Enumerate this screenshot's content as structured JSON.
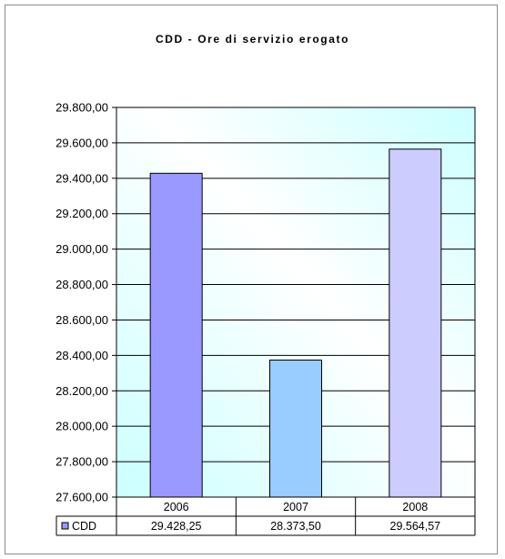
{
  "chart_data": {
    "type": "bar",
    "title": "CDD - Ore di servizio erogato",
    "categories": [
      "2006",
      "2007",
      "2008"
    ],
    "series": [
      {
        "name": "CDD",
        "values": [
          29428.25,
          28373.5,
          29564.57
        ],
        "value_labels": [
          "29.428,25",
          "28.373,50",
          "29.564,57"
        ],
        "bar_colors": [
          "#9999ff",
          "#99ccff",
          "#ccccff"
        ],
        "legend_color": "#9999ff"
      }
    ],
    "y_ticks": [
      "27.600,00",
      "27.800,00",
      "28.000,00",
      "28.200,00",
      "28.400,00",
      "28.600,00",
      "28.800,00",
      "29.000,00",
      "29.200,00",
      "29.400,00",
      "29.600,00",
      "29.800,00"
    ],
    "ylim": [
      27600,
      29800
    ],
    "ystep": 200,
    "grid": true,
    "data_table": true,
    "plot_background": [
      "#ccffff",
      "#ffffff"
    ]
  }
}
